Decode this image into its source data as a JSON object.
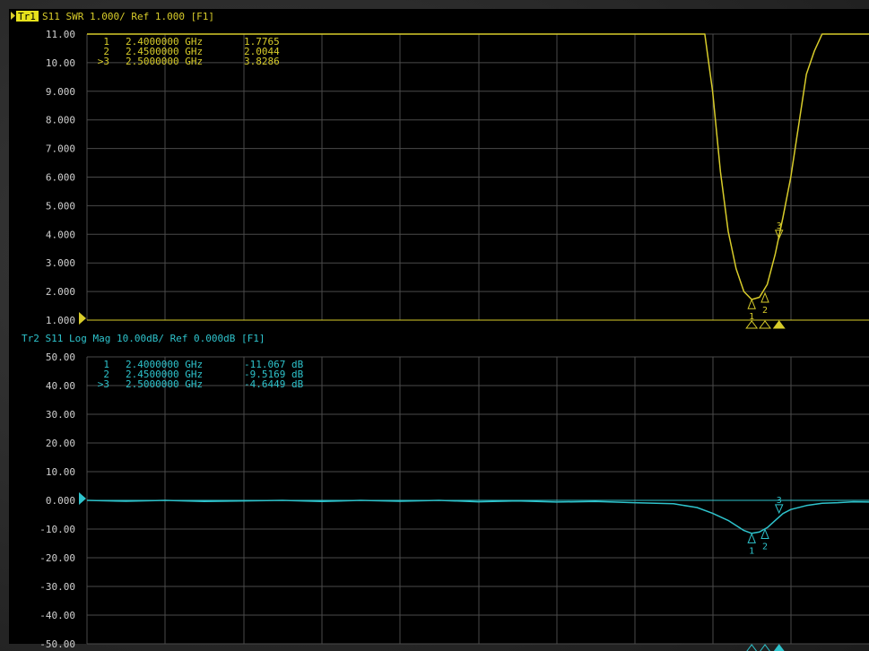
{
  "colors": {
    "trace1": "#d8cc2a",
    "trace2": "#2ec3cc",
    "grid": "#4a4a4a",
    "panel_bg": "#000000",
    "tick_text": "#d0d0d0",
    "active_bg": "#e7e21c"
  },
  "trace1": {
    "tag": "Tr1",
    "header": "S11 SWR 1.000/ Ref 1.000 [F1]",
    "ref_value": "1.000"
  },
  "trace2": {
    "header": "Tr2 S11 Log Mag 10.00dB/ Ref 0.000dB [F1]",
    "ref_value": "0.000"
  },
  "chart_data": [
    {
      "type": "line",
      "title": "Tr1 S11 SWR 1.000/ Ref 1.000 [F1]",
      "ylim": [
        1,
        11
      ],
      "xlim": [
        0,
        10
      ],
      "ytick_labels": [
        "11.00",
        "10.00",
        "9.000",
        "8.000",
        "7.000",
        "6.000",
        "5.000",
        "4.000",
        "3.000",
        "2.000",
        "1.000"
      ],
      "series": [
        {
          "x": [
            0,
            7.75,
            7.9,
            8.0,
            8.1,
            8.2,
            8.3,
            8.4,
            8.5,
            8.6,
            8.7,
            8.8,
            8.9,
            9.0,
            9.1,
            9.2,
            9.3,
            9.4,
            9.5,
            9.6,
            10
          ],
          "y": [
            11,
            11,
            11,
            9.0,
            6.2,
            4.1,
            2.8,
            2.0,
            1.72,
            1.8,
            2.25,
            3.3,
            4.6,
            6.0,
            7.8,
            9.6,
            10.4,
            11,
            11,
            11,
            11
          ]
        }
      ],
      "markers": [
        {
          "id": "1",
          "freq": "2.4000000 GHz",
          "value": "1.7765",
          "x": 8.5,
          "y": 1.7765
        },
        {
          "id": "2",
          "freq": "2.4500000 GHz",
          "value": "2.0044",
          "x": 8.67,
          "y": 2.0044
        },
        {
          "id": ">3",
          "freq": "2.5000000 GHz",
          "value": "3.8286",
          "x": 8.85,
          "y": 3.8286
        }
      ]
    },
    {
      "type": "line",
      "title": "Tr2 S11 Log Mag 10.00dB/ Ref 0.000dB [F1]",
      "ylim": [
        -50,
        50
      ],
      "xlim": [
        0,
        10
      ],
      "ytick_labels": [
        "50.00",
        "40.00",
        "30.00",
        "20.00",
        "10.00",
        "0.000",
        "-10.00",
        "-20.00",
        "-30.00",
        "-40.00",
        "-50.00"
      ],
      "series": [
        {
          "x": [
            0,
            0.5,
            1,
            1.5,
            2,
            2.5,
            3,
            3.5,
            4,
            4.5,
            5,
            5.5,
            6,
            6.5,
            7,
            7.5,
            7.8,
            8.0,
            8.2,
            8.4,
            8.5,
            8.6,
            8.7,
            8.8,
            8.9,
            9.0,
            9.2,
            9.4,
            9.6,
            9.8,
            10
          ],
          "y": [
            0,
            -0.3,
            0,
            -0.4,
            -0.2,
            0,
            -0.4,
            0,
            -0.3,
            0,
            -0.5,
            -0.2,
            -0.6,
            -0.4,
            -0.8,
            -1.2,
            -2.5,
            -4.5,
            -7.0,
            -10.5,
            -11.5,
            -11.0,
            -9.5,
            -7.0,
            -4.6,
            -3.2,
            -1.8,
            -1.0,
            -0.8,
            -0.5,
            -0.6
          ]
        }
      ],
      "markers": [
        {
          "id": "1",
          "freq": "2.4000000 GHz",
          "value": "-11.067 dB",
          "x": 8.5,
          "y": -11.067
        },
        {
          "id": "2",
          "freq": "2.4500000 GHz",
          "value": "-9.5169 dB",
          "x": 8.67,
          "y": -9.5169
        },
        {
          "id": ">3",
          "freq": "2.5000000 GHz",
          "value": "-4.6449 dB",
          "x": 8.85,
          "y": -4.6449
        }
      ]
    }
  ]
}
